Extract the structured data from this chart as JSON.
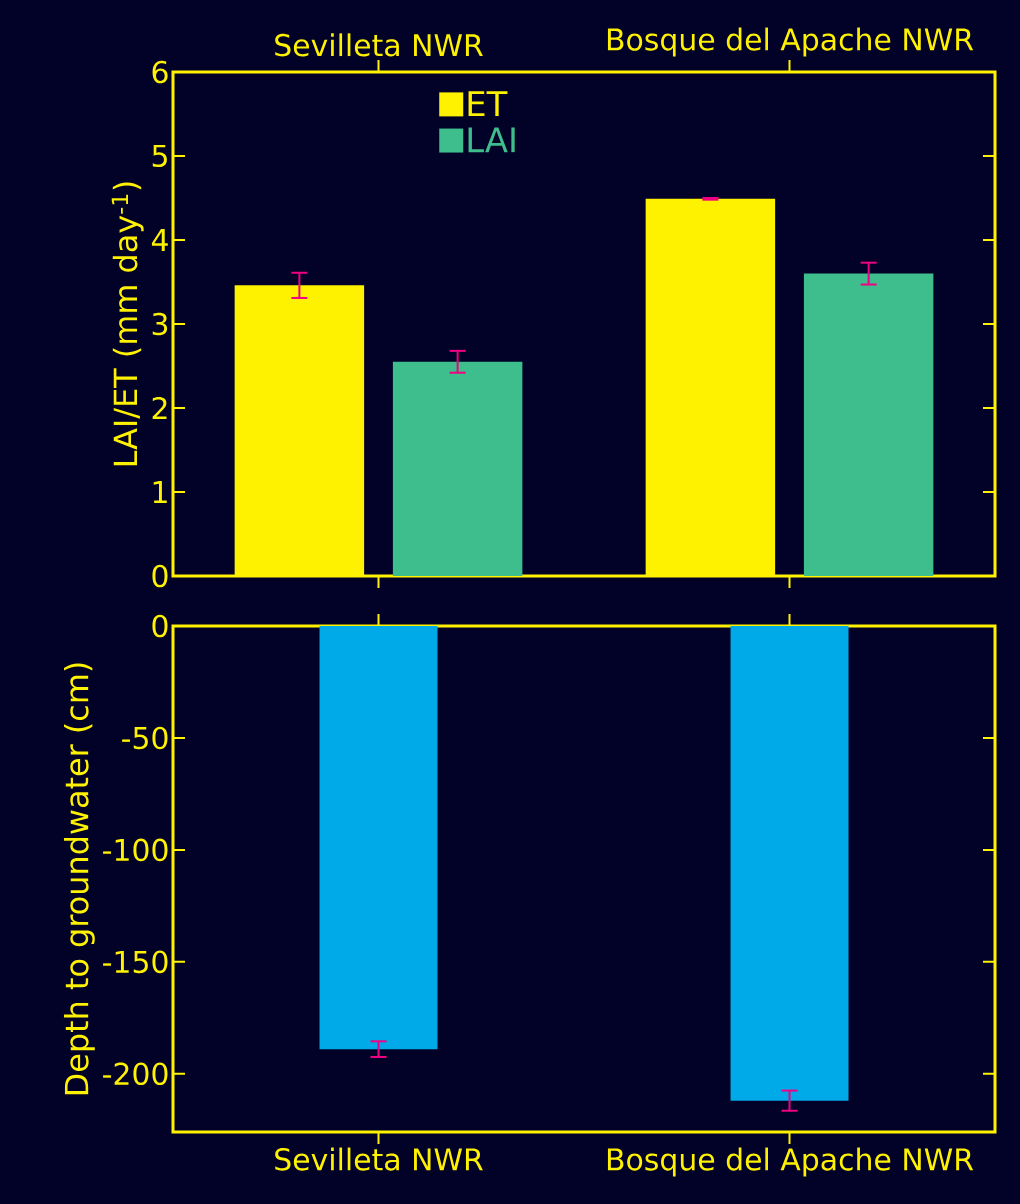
{
  "chart_data": [
    {
      "type": "bar",
      "categories": [
        "Sevilleta NWR",
        "Bosque del Apache NWR"
      ],
      "ylabel": "LAI/ET (mm day$^{-1}$)",
      "ylim": [
        0,
        6
      ],
      "yticks": [
        0,
        1,
        2,
        3,
        4,
        5,
        6
      ],
      "legend": "top left",
      "series": [
        {
          "name": "ET",
          "color": "#fff200",
          "values": [
            3.46,
            4.49
          ],
          "errors": [
            0.15,
            0.01
          ]
        },
        {
          "name": "LAI",
          "color": "#3dbe8c",
          "values": [
            2.55,
            3.6
          ],
          "errors": [
            0.13,
            0.13
          ]
        }
      ]
    },
    {
      "type": "bar",
      "categories": [
        "Sevilleta NWR",
        "Bosque del Apache NWR"
      ],
      "ylabel": "Depth to groundwater (cm)",
      "ylim": [
        -226,
        0
      ],
      "yticks": [
        -200,
        -150,
        -100,
        -50,
        0
      ],
      "color": "#00aae8",
      "values": [
        -189,
        -212
      ],
      "errors": [
        3.5,
        4.5
      ]
    }
  ]
}
